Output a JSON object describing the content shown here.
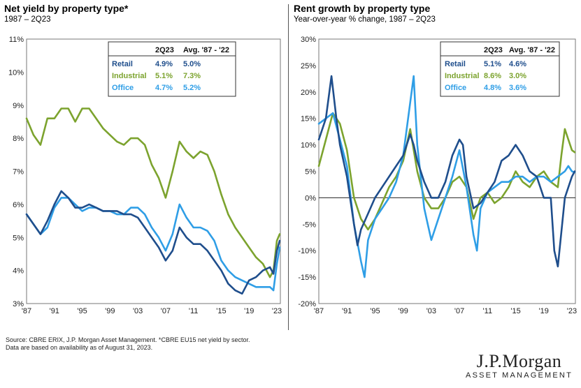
{
  "left": {
    "title": "Net yield by property type*",
    "subtitle": "1987 – 2Q23"
  },
  "right": {
    "title": "Rent growth by property type",
    "subtitle": "Year-over-year % change, 1987 – 2Q23"
  },
  "colors": {
    "retail": "#1f4e8c",
    "industrial": "#7ca32e",
    "office": "#2f9ee6",
    "grid": "#999999"
  },
  "source": {
    "line1": "Source: CBRE ERIX, J.P. Morgan Asset Management.  *CBRE EU15 net yield by sector.",
    "line2": "Data are based on availability as of August 31, 2023."
  },
  "logo": {
    "line1": "J.P.Morgan",
    "line2": "ASSET MANAGEMENT"
  },
  "chart_data": [
    {
      "type": "line",
      "title": "Net yield by property type*",
      "subtitle": "1987 – 2Q23",
      "x_ticks": [
        "'87",
        "'91",
        "'95",
        "'99",
        "'03",
        "'07",
        "'11",
        "'15",
        "'19",
        "'23"
      ],
      "y_ticks": [
        "11%",
        "10%",
        "9%",
        "8%",
        "7%",
        "6%",
        "5%",
        "4%",
        "3%"
      ],
      "xlim": [
        1987,
        2023.5
      ],
      "ylim": [
        3,
        11
      ],
      "grid": false,
      "table": {
        "headers": [
          "",
          "2Q23",
          "Avg. '87 - '22"
        ],
        "rows": [
          [
            "Retail",
            "4.9%",
            "5.0%"
          ],
          [
            "Industrial",
            "5.1%",
            "7.3%"
          ],
          [
            "Office",
            "4.7%",
            "5.2%"
          ]
        ]
      },
      "series": [
        {
          "name": "Retail",
          "x": [
            1987,
            1988,
            1989,
            1990,
            1991,
            1992,
            1993,
            1994,
            1995,
            1996,
            1997,
            1998,
            1999,
            2000,
            2001,
            2002,
            2003,
            2004,
            2005,
            2006,
            2007,
            2008,
            2009,
            2010,
            2011,
            2012,
            2013,
            2014,
            2015,
            2016,
            2017,
            2018,
            2019,
            2020,
            2021,
            2022,
            2022.5,
            2023,
            2023.4
          ],
          "y": [
            5.7,
            5.4,
            5.1,
            5.5,
            6.0,
            6.4,
            6.2,
            5.9,
            5.9,
            6.0,
            5.9,
            5.8,
            5.8,
            5.8,
            5.7,
            5.7,
            5.6,
            5.3,
            5.0,
            4.7,
            4.3,
            4.6,
            5.3,
            5.0,
            4.8,
            4.8,
            4.6,
            4.3,
            4.0,
            3.6,
            3.4,
            3.3,
            3.7,
            3.8,
            4.0,
            4.1,
            3.9,
            4.6,
            4.9
          ]
        },
        {
          "name": "Industrial",
          "x": [
            1987,
            1988,
            1989,
            1990,
            1991,
            1992,
            1993,
            1994,
            1995,
            1996,
            1997,
            1998,
            1999,
            2000,
            2001,
            2002,
            2003,
            2004,
            2005,
            2006,
            2007,
            2008,
            2009,
            2010,
            2011,
            2012,
            2013,
            2014,
            2015,
            2016,
            2017,
            2018,
            2019,
            2020,
            2021,
            2022,
            2022.5,
            2023,
            2023.4
          ],
          "y": [
            8.6,
            8.1,
            7.8,
            8.6,
            8.6,
            8.9,
            8.9,
            8.5,
            8.9,
            8.9,
            8.6,
            8.3,
            8.1,
            7.9,
            7.8,
            8.0,
            8.0,
            7.8,
            7.2,
            6.8,
            6.2,
            7.0,
            7.9,
            7.6,
            7.4,
            7.6,
            7.5,
            7.0,
            6.3,
            5.7,
            5.3,
            5.0,
            4.7,
            4.4,
            4.2,
            3.8,
            4.0,
            4.9,
            5.1
          ]
        },
        {
          "name": "Office",
          "x": [
            1987,
            1988,
            1989,
            1990,
            1991,
            1992,
            1993,
            1994,
            1995,
            1996,
            1997,
            1998,
            1999,
            2000,
            2001,
            2002,
            2003,
            2004,
            2005,
            2006,
            2007,
            2008,
            2009,
            2010,
            2011,
            2012,
            2013,
            2014,
            2015,
            2016,
            2017,
            2018,
            2019,
            2020,
            2021,
            2022,
            2022.5,
            2023,
            2023.4
          ],
          "y": [
            5.7,
            5.4,
            5.1,
            5.3,
            5.9,
            6.2,
            6.2,
            6.0,
            5.8,
            5.9,
            5.9,
            5.8,
            5.8,
            5.7,
            5.7,
            5.9,
            5.9,
            5.7,
            5.3,
            5.0,
            4.6,
            5.1,
            6.0,
            5.6,
            5.3,
            5.3,
            5.2,
            4.9,
            4.3,
            4.0,
            3.8,
            3.7,
            3.6,
            3.5,
            3.5,
            3.5,
            3.4,
            4.2,
            4.7
          ]
        }
      ]
    },
    {
      "type": "line",
      "title": "Rent growth by property type",
      "subtitle": "Year-over-year % change, 1987 – 2Q23",
      "x_ticks": [
        "'87",
        "'91",
        "'95",
        "'99",
        "'03",
        "'07",
        "'11",
        "'15",
        "'19",
        "'23"
      ],
      "y_ticks": [
        "30%",
        "25%",
        "20%",
        "15%",
        "10%",
        "5%",
        "0%",
        "-5%",
        "-10%",
        "-15%",
        "-20%"
      ],
      "xlim": [
        1987,
        2023.5
      ],
      "ylim": [
        -20,
        30
      ],
      "grid": false,
      "table": {
        "headers": [
          "",
          "2Q23",
          "Avg. '87 - '22"
        ],
        "rows": [
          [
            "Retail",
            "5.1%",
            "4.6%"
          ],
          [
            "Industrial",
            "8.6%",
            "3.0%"
          ],
          [
            "Office",
            "4.8%",
            "3.6%"
          ]
        ]
      },
      "series": [
        {
          "name": "Retail",
          "x": [
            1987,
            1988,
            1988.8,
            1989.5,
            1990,
            1991,
            1992,
            1992.5,
            1993,
            1994,
            1995,
            1996,
            1997,
            1998,
            1999,
            2000,
            2000.5,
            2001,
            2002,
            2003,
            2004,
            2005,
            2006,
            2007,
            2007.5,
            2008,
            2009,
            2010,
            2011,
            2012,
            2013,
            2014,
            2015,
            2016,
            2017,
            2018,
            2019,
            2020,
            2020.5,
            2021,
            2022,
            2023,
            2023.4
          ],
          "y": [
            11,
            15,
            23,
            15,
            10,
            4,
            -5,
            -9,
            -6,
            -3,
            0,
            2,
            4,
            6,
            8,
            12,
            10,
            7,
            3,
            0,
            0,
            3,
            8,
            11,
            10,
            4,
            -2,
            -1,
            1,
            3,
            7,
            8,
            10,
            8,
            5,
            4,
            0,
            0,
            -10,
            -13,
            0,
            4,
            5
          ]
        },
        {
          "name": "Industrial",
          "x": [
            1987,
            1988,
            1989,
            1990,
            1991,
            1992,
            1993,
            1994,
            1995,
            1996,
            1997,
            1998,
            1999,
            2000,
            2001,
            2002,
            2003,
            2004,
            2005,
            2006,
            2007,
            2008,
            2009,
            2010,
            2011,
            2012,
            2013,
            2014,
            2015,
            2016,
            2017,
            2018,
            2019,
            2020,
            2021,
            2021.5,
            2022,
            2022.5,
            2023,
            2023.4
          ],
          "y": [
            6,
            11,
            16,
            14,
            9,
            0,
            -4,
            -6,
            -4,
            -1,
            2,
            4,
            7,
            13,
            5,
            0,
            -2,
            -2,
            0,
            3,
            4,
            2,
            -4,
            0,
            1,
            -1,
            0,
            2,
            5,
            3,
            2,
            4,
            5,
            3,
            2,
            8,
            13,
            11,
            9,
            8.6
          ]
        },
        {
          "name": "Office",
          "x": [
            1987,
            1988,
            1989,
            1990,
            1991,
            1992,
            1993,
            1993.5,
            1994,
            1995,
            1996,
            1997,
            1998,
            1999,
            2000,
            2000.5,
            2001,
            2002,
            2002.5,
            2003,
            2004,
            2005,
            2006,
            2007,
            2008,
            2009,
            2009.5,
            2010,
            2011,
            2012,
            2013,
            2014,
            2015,
            2016,
            2017,
            2018,
            2019,
            2020,
            2021,
            2022,
            2022.5,
            2023,
            2023.4
          ],
          "y": [
            14,
            15,
            16,
            11,
            6,
            -5,
            -12,
            -15,
            -8,
            -4,
            -2,
            0,
            3,
            8,
            18,
            23,
            10,
            -2,
            -5,
            -8,
            -4,
            0,
            4,
            9,
            2,
            -7,
            -10,
            -2,
            1,
            2,
            3,
            3,
            4,
            4,
            3,
            4,
            4,
            3,
            4,
            5,
            6,
            5,
            4.8
          ]
        }
      ]
    }
  ]
}
